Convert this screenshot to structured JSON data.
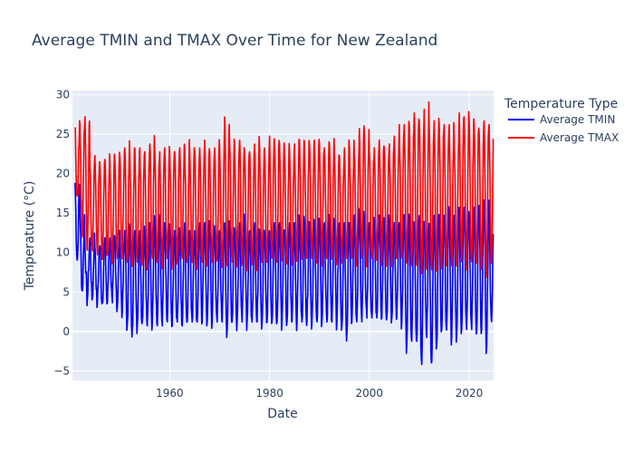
{
  "chart_data": {
    "type": "line",
    "title": "Average TMIN and TMAX Over Time for New Zealand",
    "xlabel": "Date",
    "ylabel": "Temperature (°C)",
    "xlim": [
      1940.5,
      2024.9
    ],
    "ylim": [
      -6.2,
      30.5
    ],
    "x_ticks": [
      1960,
      1980,
      2000,
      2020
    ],
    "y_ticks": [
      -5,
      0,
      5,
      10,
      15,
      20,
      25,
      30
    ],
    "grid": true,
    "plot_background": "#e5ecf6",
    "legend": {
      "title": "Temperature Type",
      "position": "top-right"
    },
    "x": [
      1941,
      1942,
      1943,
      1944,
      1945,
      1946,
      1947,
      1948,
      1949,
      1950,
      1951,
      1952,
      1953,
      1954,
      1955,
      1956,
      1957,
      1958,
      1959,
      1960,
      1961,
      1962,
      1963,
      1964,
      1965,
      1966,
      1967,
      1968,
      1969,
      1970,
      1971,
      1972,
      1973,
      1974,
      1975,
      1976,
      1977,
      1978,
      1979,
      1980,
      1981,
      1982,
      1983,
      1984,
      1985,
      1986,
      1987,
      1988,
      1989,
      1990,
      1991,
      1992,
      1993,
      1994,
      1995,
      1996,
      1997,
      1998,
      1999,
      2000,
      2001,
      2002,
      2003,
      2004,
      2005,
      2006,
      2007,
      2008,
      2009,
      2010,
      2011,
      2012,
      2013,
      2014,
      2015,
      2016,
      2017,
      2018,
      2019,
      2020,
      2021,
      2022,
      2023,
      2024
    ],
    "series": [
      {
        "name": "Average TMIN",
        "color": "#0000ff",
        "summer_peaks": [
          19,
          15,
          11,
          12,
          11,
          11,
          12,
          12,
          12,
          12,
          13,
          13,
          13,
          13,
          13,
          14,
          14,
          13,
          14,
          13,
          13,
          13,
          14,
          13,
          13,
          14,
          14,
          14,
          13,
          13,
          14,
          14,
          13,
          14,
          13,
          13,
          14,
          13,
          13,
          13,
          14,
          14,
          13,
          14,
          14,
          14,
          14,
          14,
          14,
          14,
          14,
          14,
          14,
          14,
          14,
          14,
          15,
          15,
          14,
          14,
          14,
          15,
          14,
          14,
          14,
          14,
          15,
          15,
          14,
          15,
          14,
          14,
          15,
          15,
          15,
          15,
          15,
          16,
          16,
          15,
          16,
          16,
          16,
          15
        ],
        "winter_lows": [
          9,
          5,
          4,
          4,
          3.5,
          3.5,
          3.5,
          3.5,
          3,
          2.5,
          1,
          0,
          0.5,
          1,
          0.5,
          1,
          0.5,
          0.5,
          1,
          0.5,
          1,
          0.5,
          1,
          1,
          1,
          1,
          1,
          1,
          1,
          1,
          0,
          1,
          1,
          1,
          1,
          1,
          1,
          1,
          1,
          1,
          1,
          1,
          1,
          1,
          1,
          1,
          1,
          1,
          1,
          1,
          1,
          1,
          1,
          0.5,
          -0.5,
          1,
          1,
          1,
          1.5,
          1.5,
          1.5,
          1.5,
          1.5,
          1.5,
          1.5,
          1,
          -2,
          -1.5,
          -1.5,
          -4.5,
          -1,
          -4.2,
          -2,
          0,
          0,
          -1,
          -1,
          0,
          0,
          0,
          -0.5,
          0,
          -2.5,
          1
        ]
      },
      {
        "name": "Average TMAX",
        "color": "#ff0000",
        "summer_peaks": [
          26,
          26.5,
          27.5,
          21,
          22.5,
          21.5,
          22,
          22,
          22,
          22.5,
          23.5,
          22.5,
          23.5,
          23.5,
          23,
          24,
          23,
          23,
          23.5,
          23,
          23,
          23.5,
          23.5,
          23,
          23,
          23.5,
          24.5,
          23,
          23.5,
          23.5,
          27.5,
          24,
          24,
          24.5,
          23,
          23,
          24,
          23.5,
          23.5,
          25,
          24.5,
          24,
          23,
          23,
          24,
          24.5,
          24,
          24,
          24.5,
          24,
          23.5,
          24,
          23,
          22.5,
          23.5,
          23.5,
          22.5,
          26,
          25.5,
          23,
          23.5,
          24.5,
          23.5,
          24,
          25,
          26.5,
          26.5,
          26.5,
          28,
          27,
          28.5,
          26,
          27,
          26.5,
          26.5,
          26.5,
          25,
          28,
          27.5,
          27,
          26.5,
          25.5,
          27,
          26.5
        ],
        "winter_lows": [
          17,
          12,
          10,
          10,
          9.5,
          9,
          9.5,
          9,
          9,
          9.5,
          8.5,
          8,
          8.5,
          8.5,
          8.5,
          9,
          8.5,
          8.5,
          9,
          8.5,
          8.5,
          9,
          8.5,
          8.5,
          8.5,
          8.5,
          8.5,
          8.5,
          9,
          8.5,
          8,
          8.5,
          9,
          8.5,
          8.5,
          8.5,
          8.5,
          8.5,
          8.5,
          9,
          8.5,
          9,
          8.5,
          9,
          9,
          9,
          9,
          9,
          9,
          9,
          9,
          9,
          9,
          9,
          9,
          9,
          9,
          9,
          9,
          9,
          9,
          9,
          9,
          9,
          9,
          9,
          8.5,
          8,
          8,
          7.5,
          7.5,
          7.5,
          8,
          8,
          8,
          8,
          8,
          8.5,
          8.5,
          8.5,
          8.5,
          8,
          7.5,
          9
        ]
      }
    ]
  }
}
